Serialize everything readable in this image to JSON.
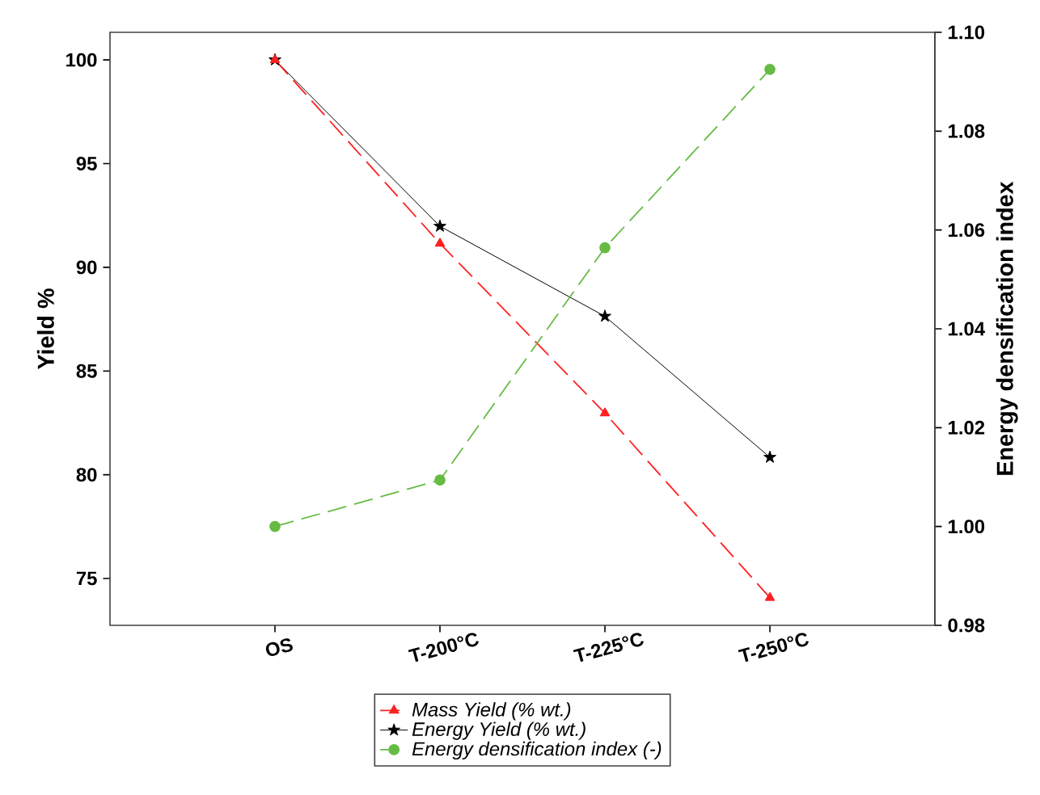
{
  "chart_data": {
    "type": "line",
    "xlabel": null,
    "ylabel": "Yield %",
    "y2label": "Energy densification index",
    "categories": [
      "OS",
      "T-200°C",
      "T-225°C",
      "T-250°C"
    ],
    "series": [
      {
        "name": "Mass Yield (% wt.)",
        "color": "#ff2020",
        "values": [
          100,
          91.15,
          82.97,
          74.07
        ],
        "marker": "triangle",
        "line_style": "dashed"
      },
      {
        "name": "Energy Yield (% wt.)",
        "color": "#000000",
        "values": [
          100,
          91.98,
          87.64,
          80.84
        ],
        "marker": "star",
        "line_style": "solid"
      },
      {
        "name": "Energy densification index (-)",
        "color": "#66bb44",
        "values": [
          1.0,
          1.0094,
          1.0564,
          1.0925
        ],
        "marker": "circle",
        "line_style": "dashed",
        "axis": "y2"
      }
    ],
    "ylim": [
      72.74,
      101.33
    ],
    "yticks": [
      75,
      80,
      85,
      90,
      95,
      100
    ],
    "y2lim": [
      0.98,
      1.1
    ],
    "y2ticks": [
      {
        "value": 0.98,
        "label": "0.98"
      },
      {
        "value": 1.0,
        "label": "1.00"
      },
      {
        "value": 1.02,
        "label": "1.02"
      },
      {
        "value": 1.04,
        "label": "1.04"
      },
      {
        "value": 1.06,
        "label": "1.06"
      },
      {
        "value": 1.08,
        "label": "1.08"
      },
      {
        "value": 1.1,
        "label": "1.10"
      }
    ],
    "grid": false,
    "legend": "bottom"
  }
}
